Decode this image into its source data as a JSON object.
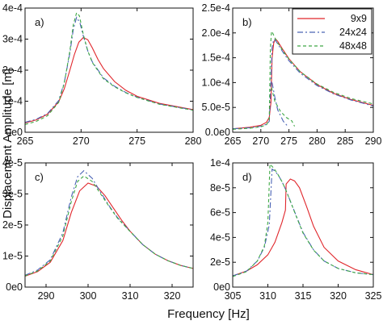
{
  "figure": {
    "ylabel": "Displacement Amplitude [m]",
    "xlabel": "Frequency [Hz]",
    "legend": {
      "placement": "panel b, top-right",
      "entries": [
        {
          "name": "9x9",
          "color": "#e0262b",
          "dash": "solid"
        },
        {
          "name": "24x24",
          "color": "#4a63b5",
          "dash": "dashdot"
        },
        {
          "name": "48x48",
          "color": "#3ea845",
          "dash": "dashed"
        }
      ]
    }
  },
  "chart_data": [
    {
      "type": "line",
      "panel_label": "a)",
      "xlim": [
        265,
        280
      ],
      "ylim": [
        0,
        0.0004
      ],
      "xticks": [
        "265",
        "270",
        "275",
        "280"
      ],
      "yticks": [
        "0e0",
        "1e-4",
        "2e-4",
        "3e-4",
        "4e-4"
      ],
      "series": [
        {
          "name": "9x9",
          "color": "#e0262b",
          "dash": "solid",
          "x": [
            265,
            266,
            267,
            268,
            268.5,
            269,
            269.4,
            269.8,
            270.2,
            270.6,
            271,
            271.5,
            272,
            273,
            274,
            275,
            277,
            280
          ],
          "y": [
            3e-05,
            4e-05,
            5.8e-05,
            9.8e-05,
            0.00014,
            0.0002,
            0.00025,
            0.00029,
            0.000305,
            0.000298,
            0.000272,
            0.000235,
            0.000205,
            0.000163,
            0.000135,
            0.000116,
            9.3e-05,
            7.3e-05
          ]
        },
        {
          "name": "24x24",
          "color": "#4a63b5",
          "dash": "dashdot",
          "x": [
            265,
            266,
            267,
            268,
            268.5,
            269,
            269.3,
            269.6,
            269.9,
            270.2,
            270.6,
            271,
            272,
            273,
            274,
            275,
            277,
            280
          ],
          "y": [
            3.2e-05,
            4.2e-05,
            6e-05,
            0.000102,
            0.00016,
            0.000255,
            0.00033,
            0.00037,
            0.000352,
            0.00031,
            0.000262,
            0.000227,
            0.000175,
            0.000148,
            0.000128,
            0.000113,
            9.1e-05,
            7.2e-05
          ]
        },
        {
          "name": "48x48",
          "color": "#3ea845",
          "dash": "dashed",
          "x": [
            265,
            266,
            267,
            268,
            268.5,
            269,
            269.3,
            269.6,
            269.85,
            270.2,
            270.6,
            271,
            272,
            273,
            274,
            275,
            277,
            280
          ],
          "y": [
            2.5e-05,
            3.5e-05,
            5.3e-05,
            9.6e-05,
            0.000158,
            0.000262,
            0.000345,
            0.000385,
            0.000375,
            0.000315,
            0.000262,
            0.000225,
            0.000172,
            0.000146,
            0.000127,
            0.000112,
            9e-05,
            7.1e-05
          ]
        }
      ]
    },
    {
      "type": "line",
      "panel_label": "b)",
      "xlim": [
        265,
        290
      ],
      "ylim": [
        0,
        0.00025
      ],
      "xticks": [
        "265",
        "270",
        "275",
        "280",
        "285",
        "290"
      ],
      "yticks": [
        "0.0e0",
        "5.0e-5",
        "1.0e-4",
        "1.5e-4",
        "2.0e-4",
        "2.5e-4"
      ],
      "series": [
        {
          "name": "9x9",
          "color": "#e0262b",
          "dash": "solid",
          "x": [
            265,
            268,
            270,
            271,
            271.5,
            271.8,
            272.0,
            272.3,
            272.6,
            273,
            274,
            275,
            277,
            280,
            283,
            286,
            290
          ],
          "y": [
            7e-06,
            1e-05,
            1.4e-05,
            2e-05,
            3e-05,
            6e-05,
            0.00015,
            0.00018,
            0.000188,
            0.000183,
            0.000165,
            0.000148,
            0.000122,
            9.6e-05,
            7.8e-05,
            6.6e-05,
            5.4e-05
          ]
        },
        {
          "name": "24x24",
          "color": "#4a63b5",
          "dash": "dashdot",
          "x": [
            265,
            268,
            270,
            271,
            271.5,
            271.8,
            272.0,
            272.3,
            272.6,
            273,
            274,
            275,
            277,
            280,
            283,
            286,
            290
          ],
          "y": [
            7e-06,
            9e-06,
            1.2e-05,
            1.6e-05,
            2.2e-05,
            0.0001,
            0.00017,
            0.000187,
            0.000185,
            0.000178,
            0.00016,
            0.000144,
            0.000119,
            9.4e-05,
            7.7e-05,
            6.5e-05,
            5.3e-05
          ]
        },
        {
          "name": "24x24 lower",
          "color": "#4a63b5",
          "dash": "dashdot",
          "x": [
            272.0,
            272.5,
            273,
            274,
            274.8
          ],
          "y": [
            0.0001,
            7e-05,
            4.5e-05,
            2.2e-05,
            1.2e-05
          ]
        },
        {
          "name": "48x48",
          "color": "#3ea845",
          "dash": "dashed",
          "x": [
            265,
            268,
            270,
            271,
            271.5,
            271.7,
            271.9,
            272.1,
            272.5,
            273,
            274,
            275,
            277,
            280,
            283,
            286,
            290
          ],
          "y": [
            6e-06,
            8e-06,
            1.1e-05,
            1.5e-05,
            2.5e-05,
            0.00017,
            0.000203,
            0.0002,
            0.00019,
            0.00018,
            0.000163,
            0.000147,
            0.000122,
            9.7e-05,
            8e-05,
            6.8e-05,
            5.7e-05
          ]
        },
        {
          "name": "48x48 lower",
          "color": "#3ea845",
          "dash": "dashed",
          "x": [
            271.9,
            272.5,
            273.5,
            274.5,
            275.5,
            276.0
          ],
          "y": [
            9e-05,
            6.2e-05,
            4.2e-05,
            3e-05,
            2.3e-05,
            1.2e-05
          ]
        }
      ]
    },
    {
      "type": "line",
      "panel_label": "c)",
      "xlim": [
        285,
        325
      ],
      "ylim": [
        0,
        4e-05
      ],
      "xticks": [
        "290",
        "300",
        "310",
        "320"
      ],
      "yticks": [
        "0e0",
        "1e-5",
        "2e-5",
        "3e-5",
        "4e-5"
      ],
      "series": [
        {
          "name": "9x9",
          "color": "#e0262b",
          "dash": "solid",
          "x": [
            285,
            288,
            291,
            294,
            296,
            298,
            300,
            302,
            304,
            306,
            308,
            310,
            313,
            316,
            319,
            322,
            325
          ],
          "y": [
            3.5e-06,
            5e-06,
            8e-06,
            1.5e-05,
            2.4e-05,
            3.1e-05,
            3.35e-05,
            3.25e-05,
            2.95e-05,
            2.55e-05,
            2.15e-05,
            1.8e-05,
            1.37e-05,
            1.06e-05,
            8.5e-06,
            7e-06,
            6e-06
          ]
        },
        {
          "name": "24x24",
          "color": "#4a63b5",
          "dash": "dashdot",
          "x": [
            285,
            288,
            291,
            294,
            296,
            297.5,
            299,
            301,
            303,
            305,
            307,
            310,
            313,
            316,
            319,
            322,
            325
          ],
          "y": [
            3.8e-06,
            5.5e-06,
            8.8e-06,
            1.75e-05,
            2.9e-05,
            3.55e-05,
            3.75e-05,
            3.5e-05,
            3.05e-05,
            2.62e-05,
            2.24e-05,
            1.8e-05,
            1.37e-05,
            1.06e-05,
            8.5e-06,
            7e-06,
            6e-06
          ]
        },
        {
          "name": "48x48",
          "color": "#3ea845",
          "dash": "dashed",
          "x": [
            285,
            288,
            291,
            294,
            296,
            297.5,
            299,
            301,
            303,
            305,
            307,
            310,
            313,
            316,
            319,
            322,
            325
          ],
          "y": [
            3.6e-06,
            5.2e-06,
            8.4e-06,
            1.65e-05,
            2.75e-05,
            3.4e-05,
            3.58e-05,
            3.4e-05,
            3e-05,
            2.6e-05,
            2.22e-05,
            1.79e-05,
            1.37e-05,
            1.06e-05,
            8.5e-06,
            7e-06,
            6e-06
          ]
        }
      ]
    },
    {
      "type": "line",
      "panel_label": "d)",
      "xlim": [
        305,
        325
      ],
      "ylim": [
        0,
        0.0001
      ],
      "xticks": [
        "305",
        "310",
        "315",
        "320",
        "325"
      ],
      "yticks": [
        "0e0",
        "2e-5",
        "4e-5",
        "6e-5",
        "8e-5",
        "1e-4"
      ],
      "series": [
        {
          "name": "9x9",
          "color": "#e0262b",
          "dash": "solid",
          "x": [
            305,
            307,
            308.5,
            310,
            311,
            312,
            312.5,
            312.6,
            313.2,
            313.8,
            314.5,
            315.5,
            316.5,
            318,
            320,
            322.5,
            325
          ],
          "y": [
            9e-06,
            1.3e-05,
            1.8e-05,
            2.6e-05,
            3.6e-05,
            5.2e-05,
            6.2e-05,
            8.3e-05,
            8.7e-05,
            8.55e-05,
            8e-05,
            6.5e-05,
            4.9e-05,
            3.2e-05,
            2.1e-05,
            1.4e-05,
            1e-05
          ]
        },
        {
          "name": "24x24",
          "color": "#4a63b5",
          "dash": "dashdot",
          "x": [
            305,
            307,
            308.5,
            309.5,
            310.2,
            310.6,
            311,
            311.5,
            312,
            312.5,
            313,
            314,
            315,
            316.5,
            318,
            320,
            322.5,
            325
          ],
          "y": [
            9e-06,
            1.3e-05,
            2.1e-05,
            3.2e-05,
            5e-05,
            9.5e-05,
            9.35e-05,
            9e-05,
            8.5e-05,
            7.9e-05,
            7.2e-05,
            5.8e-05,
            4.4e-05,
            3e-05,
            2.1e-05,
            1.5e-05,
            1.15e-05,
            1e-05
          ]
        },
        {
          "name": "48x48",
          "color": "#3ea845",
          "dash": "dashed",
          "x": [
            305,
            307,
            308.5,
            309.5,
            310,
            310.3,
            310.8,
            311.3,
            312,
            312.5,
            313,
            314,
            315,
            316.5,
            318,
            320,
            322.5,
            325
          ],
          "y": [
            8.5e-06,
            1.25e-05,
            2.1e-05,
            3.3e-05,
            5.2e-05,
            9.9e-05,
            9.6e-05,
            9.2e-05,
            8.5e-05,
            7.9e-05,
            7.2e-05,
            5.75e-05,
            4.35e-05,
            2.98e-05,
            2.1e-05,
            1.5e-05,
            1.15e-05,
            1e-05
          ]
        }
      ]
    }
  ]
}
